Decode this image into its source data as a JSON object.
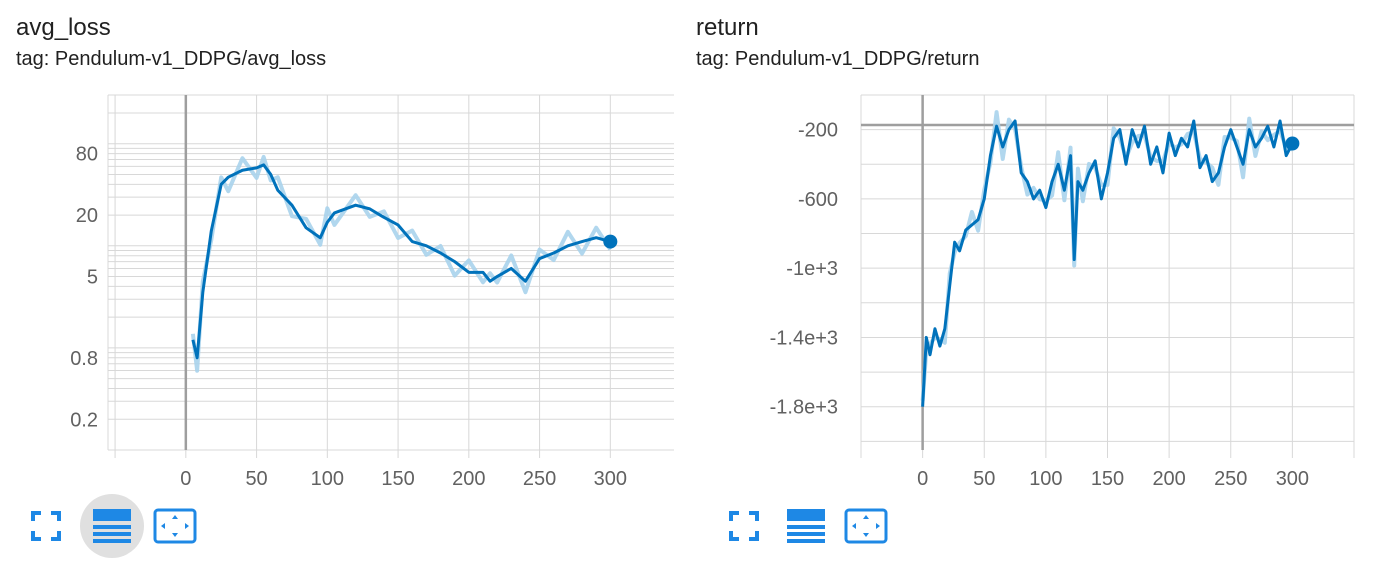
{
  "charts": [
    {
      "title": "avg_loss",
      "subtitle": "tag: Pendulum-v1_DDPG/avg_loss"
    },
    {
      "title": "return",
      "subtitle": "tag: Pendulum-v1_DDPG/return"
    }
  ],
  "colors": {
    "line": "#0072bb",
    "raw": "#a9d3ec",
    "grid": "#d8d8d8",
    "axis": "#9e9e9e",
    "icon": "#1e88e5"
  },
  "toolbar_icons": [
    "fullscreen-icon",
    "data-table-icon",
    "fit-domain-icon"
  ],
  "chart_data": [
    {
      "type": "line",
      "title": "avg_loss",
      "scale": "log",
      "xlim": [
        -55,
        345
      ],
      "ylim": [
        0.1,
        300
      ],
      "x_ticks": [
        "0",
        "50",
        "100",
        "150",
        "200",
        "250",
        "300"
      ],
      "y_ticks": [
        "0.2",
        "0.8",
        "5",
        "20",
        "80"
      ],
      "y_tick_values": [
        0.2,
        0.8,
        5,
        20,
        80
      ],
      "series": [
        {
          "x": [
            5,
            8,
            12,
            18,
            25,
            30,
            40,
            50,
            55,
            60,
            65,
            75,
            85,
            95,
            100,
            105,
            120,
            130,
            140,
            150,
            160,
            170,
            180,
            190,
            200,
            210,
            215,
            220,
            230,
            240,
            250,
            260,
            270,
            280,
            290,
            300
          ],
          "y": [
            1.2,
            0.8,
            3.5,
            14,
            40,
            47,
            55,
            58,
            62,
            50,
            35,
            25,
            15,
            12,
            17,
            21,
            25,
            23,
            19,
            16,
            11,
            10,
            8.5,
            7,
            5.5,
            5.5,
            4.5,
            5,
            6,
            4.5,
            7.5,
            8.5,
            10,
            11,
            12,
            11
          ]
        }
      ]
    },
    {
      "type": "line",
      "title": "return",
      "scale": "linear",
      "xlim": [
        -50,
        350
      ],
      "ylim": [
        -2050,
        0
      ],
      "x_ticks": [
        "0",
        "50",
        "100",
        "150",
        "200",
        "250",
        "300"
      ],
      "y_ticks": [
        "-200",
        "-600",
        "-1e+3",
        "-1.4e+3",
        "-1.8e+3"
      ],
      "y_tick_values": [
        -200,
        -600,
        -1000,
        -1400,
        -1800
      ],
      "series": [
        {
          "x": [
            0,
            3,
            6,
            10,
            14,
            18,
            22,
            26,
            30,
            35,
            40,
            45,
            50,
            55,
            60,
            65,
            70,
            75,
            80,
            85,
            90,
            95,
            100,
            105,
            110,
            115,
            120,
            123,
            126,
            130,
            135,
            140,
            145,
            150,
            155,
            160,
            165,
            170,
            175,
            180,
            185,
            190,
            195,
            200,
            205,
            210,
            215,
            220,
            225,
            230,
            235,
            240,
            245,
            250,
            255,
            260,
            265,
            270,
            275,
            280,
            285,
            290,
            295,
            300
          ],
          "y": [
            -1800,
            -1400,
            -1500,
            -1350,
            -1450,
            -1350,
            -1100,
            -850,
            -900,
            -780,
            -750,
            -720,
            -600,
            -350,
            -180,
            -300,
            -200,
            -150,
            -450,
            -500,
            -600,
            -550,
            -650,
            -500,
            -400,
            -550,
            -350,
            -950,
            -500,
            -550,
            -450,
            -380,
            -600,
            -450,
            -250,
            -200,
            -400,
            -200,
            -300,
            -180,
            -400,
            -300,
            -450,
            -220,
            -350,
            -250,
            -300,
            -150,
            -420,
            -350,
            -500,
            -450,
            -300,
            -200,
            -300,
            -400,
            -200,
            -300,
            -250,
            -180,
            -300,
            -150,
            -350,
            -280
          ]
        }
      ]
    }
  ]
}
